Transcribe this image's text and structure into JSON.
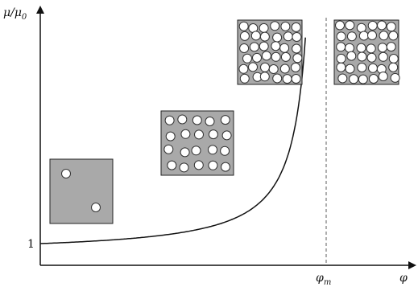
{
  "y_axis": {
    "label": "μ/μ",
    "label_sub": "0",
    "tick": "1"
  },
  "x_axis": {
    "label": "φ",
    "marker": "φ",
    "marker_sub": "m"
  }
}
